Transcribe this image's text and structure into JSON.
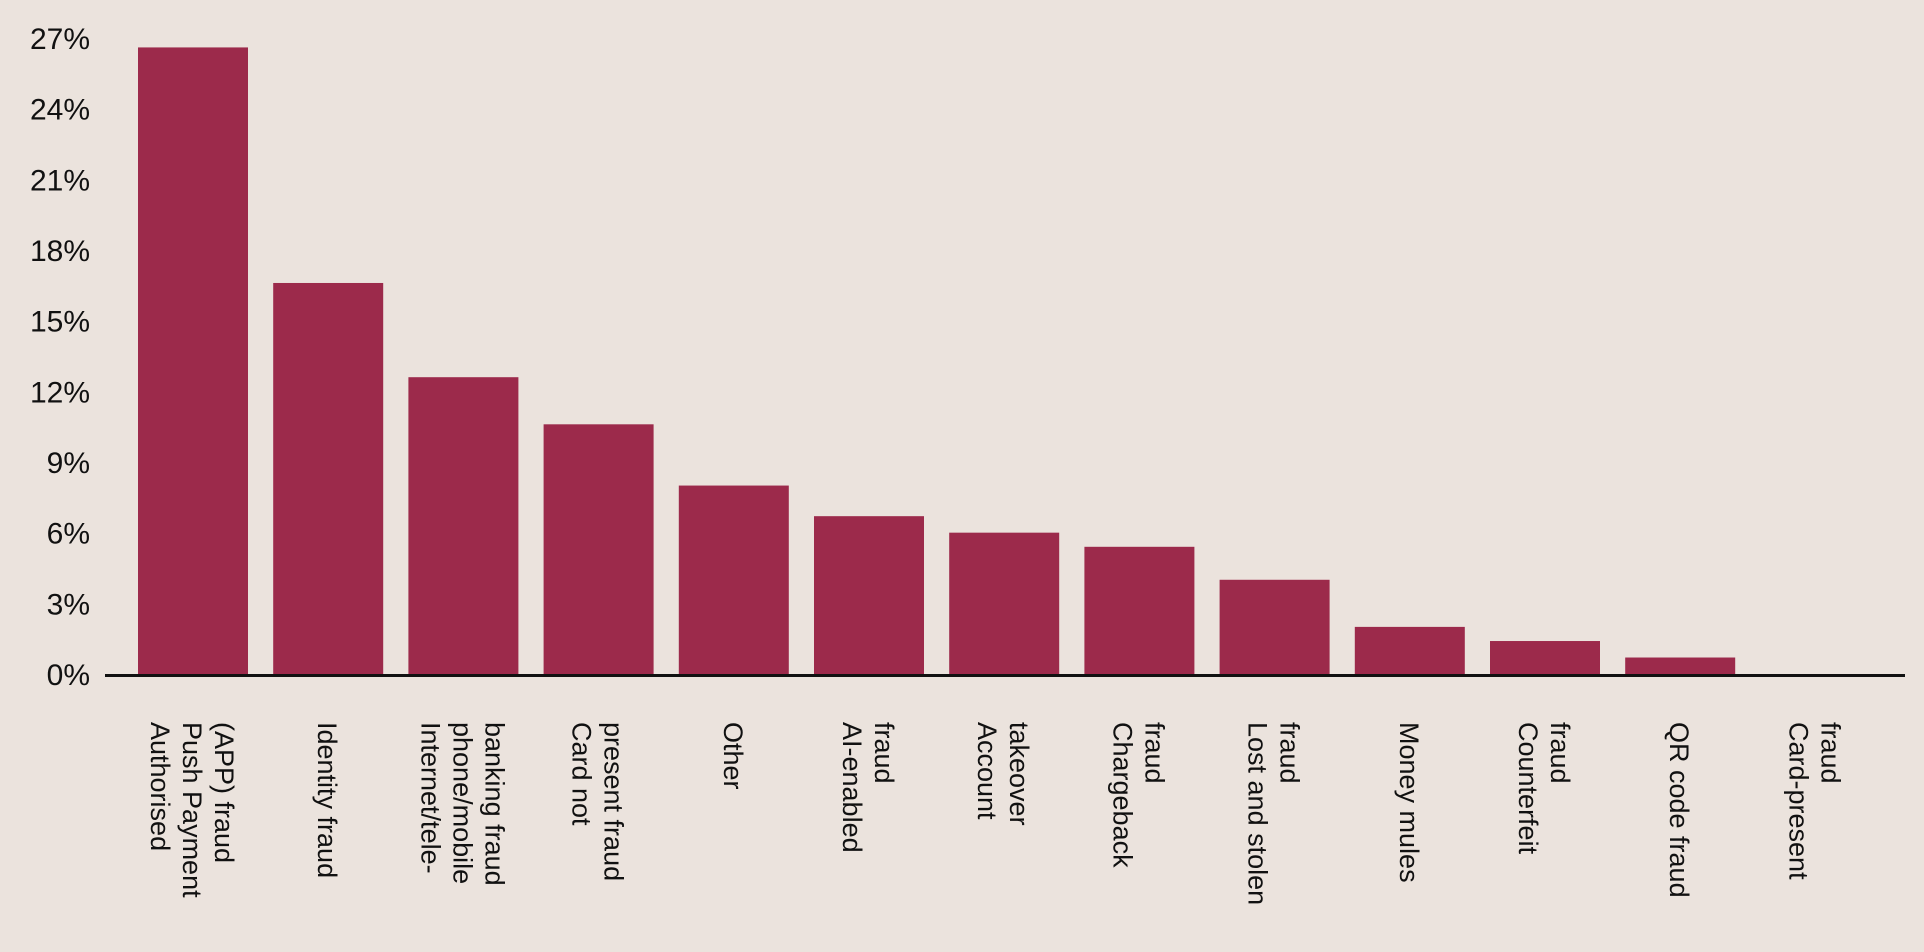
{
  "chart_data": {
    "type": "bar",
    "categories": [
      [
        "Authorised",
        "Push Payment",
        "(APP) fraud"
      ],
      [
        "Identity fraud"
      ],
      [
        "Internet/tele-",
        "phone/mobile",
        "banking fraud"
      ],
      [
        "Card not",
        "present fraud"
      ],
      [
        "Other"
      ],
      [
        "AI-enabled",
        "fraud"
      ],
      [
        "Account",
        "takeover"
      ],
      [
        "Chargeback",
        "fraud"
      ],
      [
        "Lost and stolen",
        "fraud"
      ],
      [
        "Money mules"
      ],
      [
        "Counterfeit",
        "fraud"
      ],
      [
        "QR code fraud"
      ],
      [
        "Card-present",
        "fraud"
      ]
    ],
    "values": [
      26.6,
      16.6,
      12.6,
      10.6,
      8.0,
      6.7,
      6.0,
      5.4,
      4.0,
      2.0,
      1.4,
      0.7,
      0.0
    ],
    "y_ticks": [
      "0%",
      "3%",
      "6%",
      "9%",
      "12%",
      "15%",
      "18%",
      "21%",
      "24%",
      "27%"
    ],
    "ylim": [
      0,
      27
    ],
    "title": "",
    "xlabel": "",
    "ylabel": "",
    "grid": false,
    "colors": {
      "bar": "#9c2a4b",
      "axis": "#111111",
      "background": "#ebe3dd"
    }
  }
}
